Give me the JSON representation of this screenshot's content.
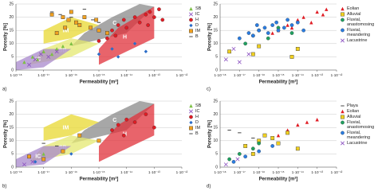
{
  "chart_data": [
    {
      "type": "scatter",
      "panel": "a)",
      "xlabel": "Permeability [m²]",
      "ylabel": "Porosity [%]",
      "log_x": true,
      "grid": true,
      "xlim": [
        1e-18,
        1e-12
      ],
      "xticks": [
        {
          "value": 1e-18,
          "label": "1·10⁻¹⁸"
        },
        {
          "value": 1e-17,
          "label": "1·10⁻¹⁷"
        },
        {
          "value": 1e-16,
          "label": "1·10⁻¹⁶"
        },
        {
          "value": 1e-15,
          "label": "1·10⁻¹⁵"
        },
        {
          "value": 1e-14,
          "label": "1·10⁻¹⁴"
        },
        {
          "value": 1e-13,
          "label": "1·10⁻¹³"
        },
        {
          "value": 1e-12,
          "label": "1·10⁻¹²"
        }
      ],
      "ylim": [
        0,
        25
      ],
      "yticks": [
        0,
        5,
        10,
        15,
        20,
        25
      ],
      "zones": [
        {
          "label": "C",
          "color": "#8a8a8a",
          "x": [
            1e-16,
            1e-14,
            1e-13,
            3e-14,
            3e-15,
            3e-16
          ],
          "y": [
            9,
            14,
            24,
            25,
            20,
            14
          ]
        },
        {
          "label": "H",
          "color": "#e0303a",
          "x": [
            1e-15,
            1e-13,
            1e-13,
            5e-15,
            1e-15
          ],
          "y": [
            2,
            12,
            24,
            16,
            8
          ]
        },
        {
          "label": "IM",
          "color": "#e8d830",
          "x": [
            1e-17,
            1e-16,
            1e-15,
            1e-16,
            1e-17
          ],
          "y": [
            10,
            12,
            17,
            20,
            15
          ]
        },
        {
          "label": "SB",
          "color": "#e4e870",
          "x": [
            3e-18,
            1e-16,
            1e-15,
            1e-16,
            1e-17
          ],
          "y": [
            2,
            5,
            10,
            12,
            8
          ]
        },
        {
          "label": "IC",
          "color": "#a888cc",
          "x": [
            1e-18,
            1e-17,
            1e-16,
            1e-17,
            1e-18
          ],
          "y": [
            0,
            1,
            8,
            8,
            3
          ]
        }
      ],
      "series": [
        {
          "name": "SB",
          "color": "#7cc043",
          "marker": "triangle",
          "x": [
            2e-18,
            4e-18,
            6e-18,
            1e-17,
            2e-17,
            3e-17,
            5e-17,
            1e-16
          ],
          "y": [
            3,
            5,
            4,
            7,
            6,
            8,
            9,
            10
          ]
        },
        {
          "name": "IC",
          "color": "#8a4fc0",
          "marker": "cross",
          "x": [
            3e-18,
            5e-18,
            8e-18,
            1.5e-17,
            3e-17
          ],
          "y": [
            2,
            4,
            6,
            5,
            7
          ]
        },
        {
          "name": "H",
          "color": "#e01c24",
          "marker": "circle",
          "x": [
            3e-15,
            5e-15,
            8e-15,
            1e-14,
            2e-14,
            3e-14,
            5e-14,
            7e-14,
            1e-13,
            1.5e-13,
            2e-13,
            4e-15,
            6e-14,
            2e-15,
            1e-15
          ],
          "y": [
            15,
            17,
            19,
            16,
            20,
            18,
            21,
            22,
            20,
            23,
            19,
            13,
            17,
            12,
            11
          ]
        },
        {
          "name": "D",
          "color": "#2a6cc8",
          "marker": "diamond",
          "x": [
            1e-15,
            3e-15,
            5e-15,
            2e-14,
            5e-14
          ],
          "y": [
            6,
            8,
            5,
            10,
            7
          ]
        },
        {
          "name": "IM",
          "color": "#f0a020",
          "marker": "square",
          "x": [
            2e-17,
            5e-17,
            8e-17,
            1e-16,
            1.5e-16,
            2e-16,
            3e-16,
            5e-16,
            8e-16,
            1e-15,
            2e-15,
            3e-17,
            6e-17
          ],
          "y": [
            21,
            20,
            19,
            22,
            18,
            17,
            20,
            16,
            19,
            15,
            14,
            14,
            16
          ]
        },
        {
          "name": "B",
          "color": "#444444",
          "marker": "dash",
          "x": [
            2e-17,
            4e-17,
            1e-16,
            3e-16,
            6e-16,
            1e-15
          ],
          "y": [
            22,
            21,
            20,
            23,
            19,
            18
          ]
        }
      ]
    },
    {
      "type": "scatter",
      "panel": "c)",
      "xlabel": "Permeability [m²]",
      "ylabel": "Porosity [%]",
      "log_x": true,
      "grid": true,
      "xlim": [
        1e-18,
        1e-12
      ],
      "xticks": [
        {
          "value": 1e-18,
          "label": "1·10⁻¹⁸"
        },
        {
          "value": 1e-17,
          "label": "1·10⁻¹⁷"
        },
        {
          "value": 1e-16,
          "label": "1·10⁻¹⁶"
        },
        {
          "value": 1e-15,
          "label": "1·10⁻¹⁵"
        },
        {
          "value": 1e-14,
          "label": "1·10⁻¹⁴"
        },
        {
          "value": 1e-13,
          "label": "1·10⁻¹³"
        },
        {
          "value": 1e-12,
          "label": "1·10⁻¹²"
        }
      ],
      "ylim": [
        0,
        25
      ],
      "yticks": [
        0,
        5,
        10,
        15,
        20,
        25
      ],
      "series": [
        {
          "name": "Eolian",
          "color": "#e01c24",
          "marker": "triangle",
          "x": [
            5e-16,
            1e-15,
            3e-15,
            5e-15,
            1e-14,
            2e-14,
            5e-14,
            1e-13,
            2e-13,
            3e-13
          ],
          "y": [
            14,
            15,
            17,
            16,
            19,
            20,
            18,
            22,
            21,
            23
          ]
        },
        {
          "name": "Alluvial",
          "color": "#f0d020",
          "marker": "square",
          "x": [
            3e-18,
            5e-17,
            1e-16,
            5e-15,
            1e-14
          ],
          "y": [
            7,
            6,
            9,
            5,
            8
          ]
        },
        {
          "name": "Fluvial, anastomosing",
          "color": "#20a060",
          "marker": "circle",
          "x": [
            2e-17,
            5e-17,
            1e-16,
            3e-16,
            1e-15,
            5e-15
          ],
          "y": [
            10,
            13,
            15,
            12,
            16,
            14
          ]
        },
        {
          "name": "Fluvial, meandering",
          "color": "#2a7ce0",
          "marker": "circle",
          "x": [
            1e-17,
            3e-17,
            5e-17,
            8e-17,
            1e-16,
            2e-16,
            3e-16,
            5e-16,
            8e-16,
            1e-15,
            2e-15,
            3e-15,
            5e-15,
            1e-14,
            2e-14
          ],
          "y": [
            12,
            14,
            13,
            17,
            15,
            16,
            14,
            17,
            18,
            15,
            16,
            19,
            17,
            18,
            15
          ]
        },
        {
          "name": "Lacustrine",
          "color": "#8a4fc0",
          "marker": "cross",
          "x": [
            2e-18,
            5e-18,
            1e-17,
            3e-17
          ],
          "y": [
            4,
            8,
            3,
            6
          ]
        }
      ]
    },
    {
      "type": "scatter",
      "panel": "b)",
      "xlabel": "Permeability [m²]",
      "ylabel": "Porosity [%]",
      "log_x": true,
      "grid": true,
      "xlim": [
        1e-18,
        1e-12
      ],
      "xticks": [
        {
          "value": 1e-18,
          "label": "1·10⁻¹⁸"
        },
        {
          "value": 1e-17,
          "label": "1·10⁻¹⁷"
        },
        {
          "value": 1e-16,
          "label": "1·10⁻¹⁶"
        },
        {
          "value": 1e-15,
          "label": "1·10⁻¹⁵"
        },
        {
          "value": 1e-14,
          "label": "1·10⁻¹⁴"
        },
        {
          "value": 1e-13,
          "label": "1·10⁻¹³"
        },
        {
          "value": 1e-12,
          "label": "1·10⁻¹²"
        }
      ],
      "ylim": [
        0,
        25
      ],
      "yticks": [
        0,
        5,
        10,
        15,
        20,
        25
      ],
      "zones": [
        {
          "label": "C",
          "color": "#8a8a8a",
          "x": [
            1e-16,
            1e-14,
            1e-13,
            3e-14,
            3e-15,
            3e-16
          ],
          "y": [
            9,
            14,
            24,
            25,
            20,
            14
          ]
        },
        {
          "label": "H",
          "color": "#e0303a",
          "x": [
            1e-15,
            1e-13,
            1e-13,
            5e-15,
            1e-15
          ],
          "y": [
            2,
            12,
            24,
            16,
            8
          ]
        },
        {
          "label": "IM",
          "color": "#e8d830",
          "x": [
            1e-17,
            1e-16,
            1e-15,
            1e-16,
            1e-17
          ],
          "y": [
            10,
            12,
            17,
            20,
            15
          ]
        },
        {
          "label": "SB",
          "color": "#e4e870",
          "x": [
            3e-18,
            1e-16,
            1e-15,
            1e-16,
            1e-17
          ],
          "y": [
            2,
            5,
            10,
            12,
            8
          ]
        },
        {
          "label": "IC",
          "color": "#a888cc",
          "x": [
            1e-18,
            1e-17,
            1e-16,
            1e-17,
            1e-18
          ],
          "y": [
            0,
            1,
            8,
            8,
            3
          ]
        }
      ],
      "series": [
        {
          "name": "SB",
          "color": "#7cc043",
          "marker": "triangle",
          "x": [
            1e-17,
            5e-17
          ],
          "y": [
            5,
            6
          ]
        },
        {
          "name": "IC",
          "color": "#8a4fc0",
          "marker": "cross",
          "x": [
            2e-18,
            4e-18,
            1e-17
          ],
          "y": [
            1,
            2,
            3
          ]
        },
        {
          "name": "H",
          "color": "#e01c24",
          "marker": "circle",
          "x": [
            3e-15,
            5e-15,
            1e-14,
            2e-14,
            5e-14,
            1e-13,
            8e-15
          ],
          "y": [
            14,
            16,
            18,
            17,
            20,
            15,
            12
          ]
        },
        {
          "name": "D",
          "color": "#2a6cc8",
          "marker": "diamond",
          "x": [
            5e-18,
            1e-16
          ],
          "y": [
            2,
            5
          ]
        },
        {
          "name": "IM",
          "color": "#f0a020",
          "marker": "square",
          "x": [
            3e-18,
            1e-17,
            5e-17,
            2e-16,
            1e-15
          ],
          "y": [
            4,
            3,
            6,
            12,
            10
          ]
        },
        {
          "name": "B",
          "color": "#444444",
          "marker": "dash",
          "x": [
            1e-17,
            3e-17
          ],
          "y": [
            9,
            8
          ]
        }
      ]
    },
    {
      "type": "scatter",
      "panel": "d)",
      "xlabel": "Permeability [m²]",
      "ylabel": "Porosity [%]",
      "log_x": true,
      "grid": true,
      "xlim": [
        1e-18,
        1e-12
      ],
      "xticks": [
        {
          "value": 1e-18,
          "label": "1·10⁻¹⁸"
        },
        {
          "value": 1e-17,
          "label": "1·10⁻¹⁷"
        },
        {
          "value": 1e-16,
          "label": "1·10⁻¹⁶"
        },
        {
          "value": 1e-15,
          "label": "1·10⁻¹⁵"
        },
        {
          "value": 1e-14,
          "label": "1·10⁻¹⁴"
        },
        {
          "value": 1e-13,
          "label": "1·10⁻¹³"
        },
        {
          "value": 1e-12,
          "label": "1·10⁻¹²"
        }
      ],
      "ylim": [
        0,
        25
      ],
      "yticks": [
        0,
        5,
        10,
        15,
        20,
        25
      ],
      "series": [
        {
          "name": "Playa",
          "color": "#444444",
          "marker": "dash",
          "x": [
            3e-18,
            1e-17,
            5e-17
          ],
          "y": [
            14,
            13,
            11
          ]
        },
        {
          "name": "Eolian",
          "color": "#e01c24",
          "marker": "triangle",
          "x": [
            1e-15,
            3e-15,
            1e-14,
            3e-14,
            1e-13
          ],
          "y": [
            12,
            14,
            16,
            17,
            18
          ]
        },
        {
          "name": "Alluvial",
          "color": "#f0d020",
          "marker": "square",
          "x": [
            2e-17,
            5e-17,
            1e-16,
            2e-16,
            5e-16,
            1e-15,
            3e-15,
            1e-14
          ],
          "y": [
            8,
            5,
            10,
            12,
            11,
            9,
            13,
            7
          ]
        },
        {
          "name": "Fluvial, anastomosing",
          "color": "#20a060",
          "marker": "circle",
          "x": [
            3e-18,
            1e-17,
            5e-17,
            1e-16
          ],
          "y": [
            3,
            5,
            7,
            9
          ]
        },
        {
          "name": "Fluvial, meandering",
          "color": "#2a7ce0",
          "marker": "circle",
          "x": [
            5e-18,
            2e-17,
            1e-16,
            5e-16
          ],
          "y": [
            2,
            4,
            6,
            8
          ]
        },
        {
          "name": "Lacustrine",
          "color": "#8a4fc0",
          "marker": "cross",
          "x": [
            2e-18,
            8e-18
          ],
          "y": [
            1,
            3
          ]
        }
      ]
    }
  ]
}
